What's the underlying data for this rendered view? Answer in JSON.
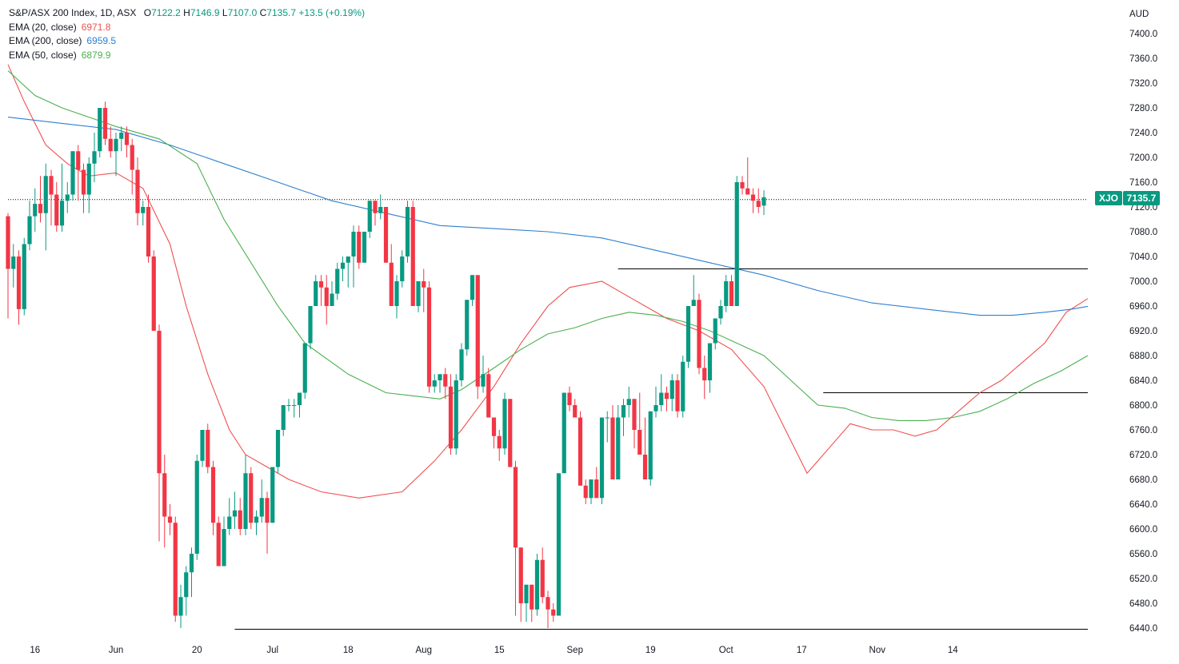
{
  "header": {
    "symbol_title": "S&P/ASX 200 Index, 1D, ASX",
    "ohlc": [
      {
        "k": "O",
        "v": "7122.2"
      },
      {
        "k": "H",
        "v": "7146.9"
      },
      {
        "k": "L",
        "v": "7107.0"
      },
      {
        "k": "C",
        "v": "7135.7"
      }
    ],
    "change": "+13.5 (+0.19%)",
    "indicators": [
      {
        "label": "EMA (20, close)",
        "value": "6971.8",
        "color": "#f0504f"
      },
      {
        "label": "EMA (200, close)",
        "value": "6959.5",
        "color": "#2f7fd0"
      },
      {
        "label": "EMA (50, close)",
        "value": "6879.9",
        "color": "#4caf50"
      }
    ]
  },
  "price_axis": {
    "currency": "AUD",
    "ticks": [
      "7400.0",
      "7360.0",
      "7320.0",
      "7280.0",
      "7240.0",
      "7200.0",
      "7160.0",
      "7120.0",
      "7080.0",
      "7040.0",
      "7000.0",
      "6960.0",
      "6920.0",
      "6880.0",
      "6840.0",
      "6800.0",
      "6760.0",
      "6720.0",
      "6680.0",
      "6640.0",
      "6600.0",
      "6560.0",
      "6520.0",
      "6480.0",
      "6440.0"
    ]
  },
  "last_price": {
    "ticker": "XJO",
    "value": "7135.7",
    "color": "#089981"
  },
  "time_axis": {
    "labels": [
      "16",
      "Jun",
      "20",
      "Jul",
      "18",
      "Aug",
      "15",
      "Sep",
      "19",
      "Oct",
      "17",
      "Nov",
      "14"
    ]
  },
  "colors": {
    "up": "#089981",
    "down": "#f23645",
    "ema20": "#f0504f",
    "ema200": "#2f7fd0",
    "ema50": "#4caf50"
  },
  "chart_data": {
    "type": "candlestick",
    "title": "S&P/ASX 200 Index, 1D, ASX",
    "ylabel": "AUD",
    "ylim": [
      6440,
      7440
    ],
    "x_label_index": [
      5,
      20,
      35,
      49,
      63,
      77,
      91,
      105,
      119,
      133,
      147,
      161,
      175
    ],
    "candles": [
      [
        7105,
        7110,
        6940,
        7020
      ],
      [
        7020,
        7060,
        6990,
        7040
      ],
      [
        7040,
        7050,
        6930,
        6955
      ],
      [
        6955,
        7070,
        6945,
        7060
      ],
      [
        7060,
        7130,
        7050,
        7105
      ],
      [
        7105,
        7150,
        7080,
        7125
      ],
      [
        7125,
        7170,
        7095,
        7110
      ],
      [
        7110,
        7190,
        7050,
        7170
      ],
      [
        7170,
        7180,
        7090,
        7140
      ],
      [
        7140,
        7160,
        7080,
        7090
      ],
      [
        7090,
        7190,
        7080,
        7130
      ],
      [
        7130,
        7160,
        7110,
        7140
      ],
      [
        7140,
        7210,
        7130,
        7210
      ],
      [
        7210,
        7220,
        7130,
        7180
      ],
      [
        7180,
        7190,
        7110,
        7140
      ],
      [
        7140,
        7200,
        7110,
        7190
      ],
      [
        7190,
        7240,
        7160,
        7210
      ],
      [
        7210,
        7280,
        7200,
        7280
      ],
      [
        7280,
        7290,
        7220,
        7230
      ],
      [
        7230,
        7250,
        7200,
        7210
      ],
      [
        7210,
        7240,
        7170,
        7230
      ],
      [
        7230,
        7250,
        7210,
        7240
      ],
      [
        7240,
        7250,
        7200,
        7220
      ],
      [
        7220,
        7230,
        7140,
        7180
      ],
      [
        7180,
        7200,
        7090,
        7110
      ],
      [
        7110,
        7130,
        7090,
        7120
      ],
      [
        7120,
        7140,
        7030,
        7040
      ],
      [
        7040,
        7050,
        6920,
        6920
      ],
      [
        6920,
        6930,
        6580,
        6690
      ],
      [
        6690,
        6720,
        6570,
        6620
      ],
      [
        6620,
        6640,
        6590,
        6610
      ],
      [
        6610,
        6620,
        6450,
        6460
      ],
      [
        6460,
        6510,
        6440,
        6490
      ],
      [
        6490,
        6540,
        6460,
        6530
      ],
      [
        6530,
        6570,
        6490,
        6560
      ],
      [
        6560,
        6720,
        6550,
        6710
      ],
      [
        6710,
        6760,
        6700,
        6760
      ],
      [
        6760,
        6770,
        6690,
        6700
      ],
      [
        6700,
        6710,
        6590,
        6610
      ],
      [
        6610,
        6620,
        6540,
        6540
      ],
      [
        6540,
        6620,
        6540,
        6600
      ],
      [
        6600,
        6650,
        6590,
        6620
      ],
      [
        6620,
        6660,
        6600,
        6630
      ],
      [
        6630,
        6650,
        6590,
        6600
      ],
      [
        6600,
        6720,
        6590,
        6690
      ],
      [
        6690,
        6700,
        6600,
        6610
      ],
      [
        6610,
        6630,
        6590,
        6620
      ],
      [
        6620,
        6680,
        6610,
        6650
      ],
      [
        6650,
        6660,
        6560,
        6610
      ],
      [
        6610,
        6700,
        6610,
        6700
      ],
      [
        6700,
        6760,
        6690,
        6760
      ],
      [
        6760,
        6800,
        6750,
        6800
      ],
      [
        6800,
        6810,
        6790,
        6800
      ],
      [
        6800,
        6810,
        6780,
        6800
      ],
      [
        6800,
        6820,
        6780,
        6820
      ],
      [
        6820,
        6900,
        6810,
        6900
      ],
      [
        6900,
        6960,
        6890,
        6960
      ],
      [
        6960,
        7010,
        6960,
        7000
      ],
      [
        7000,
        7010,
        6960,
        6990
      ],
      [
        6990,
        7010,
        6930,
        6960
      ],
      [
        6960,
        7000,
        6960,
        6980
      ],
      [
        6980,
        7030,
        6970,
        7020
      ],
      [
        7020,
        7040,
        7000,
        7030
      ],
      [
        7030,
        7040,
        6990,
        7040
      ],
      [
        7040,
        7090,
        6990,
        7080
      ],
      [
        7080,
        7090,
        7020,
        7030
      ],
      [
        7030,
        7080,
        7030,
        7080
      ],
      [
        7080,
        7130,
        7070,
        7130
      ],
      [
        7130,
        7130,
        7090,
        7110
      ],
      [
        7110,
        7140,
        7100,
        7120
      ],
      [
        7120,
        7120,
        7030,
        7030
      ],
      [
        7030,
        7060,
        6960,
        6960
      ],
      [
        6960,
        7010,
        6940,
        7000
      ],
      [
        7000,
        7050,
        6990,
        7040
      ],
      [
        7040,
        7130,
        7030,
        7120
      ],
      [
        7120,
        7130,
        6960,
        6960
      ],
      [
        6960,
        7000,
        6950,
        7000
      ],
      [
        7000,
        7020,
        6950,
        6990
      ],
      [
        6990,
        7000,
        6820,
        6830
      ],
      [
        6830,
        6850,
        6820,
        6840
      ],
      [
        6840,
        6850,
        6820,
        6850
      ],
      [
        6850,
        6860,
        6810,
        6830
      ],
      [
        6830,
        6850,
        6720,
        6730
      ],
      [
        6730,
        6850,
        6720,
        6840
      ],
      [
        6840,
        6900,
        6830,
        6890
      ],
      [
        6890,
        6970,
        6880,
        6970
      ],
      [
        6970,
        7010,
        6960,
        7010
      ],
      [
        7010,
        7010,
        6810,
        6830
      ],
      [
        6830,
        6880,
        6820,
        6850
      ],
      [
        6850,
        6860,
        6780,
        6780
      ],
      [
        6780,
        6780,
        6730,
        6750
      ],
      [
        6750,
        6760,
        6710,
        6730
      ],
      [
        6730,
        6820,
        6720,
        6810
      ],
      [
        6810,
        6810,
        6700,
        6700
      ],
      [
        6700,
        6710,
        6460,
        6570
      ],
      [
        6570,
        6570,
        6450,
        6480
      ],
      [
        6480,
        6510,
        6450,
        6510
      ],
      [
        6510,
        6510,
        6450,
        6470
      ],
      [
        6470,
        6560,
        6460,
        6550
      ],
      [
        6550,
        6570,
        6480,
        6490
      ],
      [
        6490,
        6500,
        6440,
        6470
      ],
      [
        6470,
        6480,
        6450,
        6460
      ],
      [
        6460,
        6690,
        6460,
        6690
      ],
      [
        6690,
        6820,
        6690,
        6820
      ],
      [
        6820,
        6830,
        6790,
        6800
      ],
      [
        6800,
        6810,
        6780,
        6780
      ],
      [
        6780,
        6790,
        6670,
        6670
      ],
      [
        6670,
        6680,
        6640,
        6650
      ],
      [
        6650,
        6680,
        6640,
        6680
      ],
      [
        6680,
        6700,
        6650,
        6650
      ],
      [
        6650,
        6780,
        6640,
        6780
      ],
      [
        6780,
        6790,
        6740,
        6780
      ],
      [
        6780,
        6800,
        6680,
        6680
      ],
      [
        6680,
        6800,
        6680,
        6780
      ],
      [
        6780,
        6810,
        6750,
        6800
      ],
      [
        6800,
        6830,
        6780,
        6810
      ],
      [
        6810,
        6810,
        6730,
        6760
      ],
      [
        6760,
        6820,
        6720,
        6720
      ],
      [
        6720,
        6780,
        6680,
        6680
      ],
      [
        6680,
        6790,
        6670,
        6790
      ],
      [
        6790,
        6830,
        6780,
        6800
      ],
      [
        6800,
        6850,
        6790,
        6820
      ],
      [
        6820,
        6830,
        6790,
        6810
      ],
      [
        6810,
        6850,
        6790,
        6840
      ],
      [
        6840,
        6850,
        6780,
        6790
      ],
      [
        6790,
        6880,
        6780,
        6870
      ],
      [
        6870,
        6960,
        6860,
        6960
      ],
      [
        6960,
        7010,
        6960,
        6970
      ],
      [
        6970,
        6980,
        6850,
        6860
      ],
      [
        6860,
        6880,
        6810,
        6840
      ],
      [
        6840,
        6900,
        6820,
        6900
      ],
      [
        6900,
        6940,
        6890,
        6940
      ],
      [
        6940,
        6970,
        6930,
        6960
      ],
      [
        6960,
        7010,
        6950,
        7000
      ],
      [
        7000,
        7010,
        6960,
        6960
      ],
      [
        6960,
        7170,
        6960,
        7160
      ],
      [
        7160,
        7170,
        7140,
        7150
      ],
      [
        7150,
        7200,
        7140,
        7140
      ],
      [
        7140,
        7150,
        7110,
        7130
      ],
      [
        7130,
        7150,
        7110,
        7120
      ],
      [
        7122.2,
        7146.9,
        7107.0,
        7135.7
      ]
    ],
    "ema": [
      {
        "name": "EMA (20, close)",
        "value": 6971.8,
        "color": "#f0504f",
        "points": [
          [
            0,
            7350
          ],
          [
            3,
            7290
          ],
          [
            7,
            7220
          ],
          [
            11,
            7190
          ],
          [
            15,
            7170
          ],
          [
            20,
            7175
          ],
          [
            25,
            7150
          ],
          [
            30,
            7060
          ],
          [
            33,
            6960
          ],
          [
            37,
            6850
          ],
          [
            41,
            6760
          ],
          [
            44,
            6720
          ],
          [
            48,
            6700
          ],
          [
            52,
            6680
          ],
          [
            58,
            6660
          ],
          [
            65,
            6650
          ],
          [
            73,
            6660
          ],
          [
            79,
            6710
          ],
          [
            84,
            6760
          ],
          [
            90,
            6830
          ],
          [
            95,
            6900
          ],
          [
            100,
            6960
          ],
          [
            104,
            6990
          ],
          [
            110,
            7000
          ],
          [
            116,
            6970
          ],
          [
            122,
            6940
          ],
          [
            128,
            6920
          ],
          [
            134,
            6890
          ],
          [
            140,
            6830
          ],
          [
            144,
            6760
          ],
          [
            148,
            6690
          ],
          [
            152,
            6730
          ],
          [
            156,
            6770
          ],
          [
            160,
            6760
          ],
          [
            164,
            6760
          ],
          [
            168,
            6750
          ],
          [
            172,
            6760
          ],
          [
            176,
            6790
          ],
          [
            180,
            6820
          ],
          [
            184,
            6840
          ],
          [
            188,
            6870
          ],
          [
            192,
            6900
          ],
          [
            196,
            6950
          ],
          [
            200,
            6972
          ]
        ]
      },
      {
        "name": "EMA (200, close)",
        "value": 6959.5,
        "color": "#2f7fd0",
        "points": [
          [
            0,
            7265
          ],
          [
            10,
            7255
          ],
          [
            20,
            7245
          ],
          [
            30,
            7220
          ],
          [
            40,
            7190
          ],
          [
            50,
            7160
          ],
          [
            60,
            7130
          ],
          [
            70,
            7110
          ],
          [
            80,
            7090
          ],
          [
            90,
            7085
          ],
          [
            100,
            7080
          ],
          [
            110,
            7070
          ],
          [
            120,
            7050
          ],
          [
            130,
            7030
          ],
          [
            140,
            7010
          ],
          [
            150,
            6985
          ],
          [
            160,
            6965
          ],
          [
            170,
            6955
          ],
          [
            180,
            6945
          ],
          [
            186,
            6945
          ],
          [
            192,
            6950
          ],
          [
            197,
            6955
          ],
          [
            200,
            6959.5
          ]
        ]
      },
      {
        "name": "EMA (50, close)",
        "value": 6879.9,
        "color": "#4caf50",
        "points": [
          [
            0,
            7340
          ],
          [
            5,
            7300
          ],
          [
            10,
            7280
          ],
          [
            20,
            7250
          ],
          [
            28,
            7230
          ],
          [
            35,
            7190
          ],
          [
            40,
            7100
          ],
          [
            45,
            7030
          ],
          [
            50,
            6960
          ],
          [
            55,
            6900
          ],
          [
            63,
            6850
          ],
          [
            70,
            6820
          ],
          [
            75,
            6815
          ],
          [
            80,
            6810
          ],
          [
            84,
            6825
          ],
          [
            90,
            6860
          ],
          [
            95,
            6890
          ],
          [
            100,
            6915
          ],
          [
            105,
            6925
          ],
          [
            110,
            6940
          ],
          [
            115,
            6950
          ],
          [
            120,
            6945
          ],
          [
            125,
            6935
          ],
          [
            130,
            6920
          ],
          [
            135,
            6900
          ],
          [
            140,
            6880
          ],
          [
            145,
            6840
          ],
          [
            150,
            6800
          ],
          [
            155,
            6795
          ],
          [
            160,
            6780
          ],
          [
            165,
            6775
          ],
          [
            170,
            6775
          ],
          [
            175,
            6780
          ],
          [
            180,
            6790
          ],
          [
            185,
            6810
          ],
          [
            190,
            6835
          ],
          [
            195,
            6855
          ],
          [
            200,
            6880
          ]
        ]
      }
    ],
    "levels": [
      {
        "price": 7020,
        "from_index": 113,
        "to_index": 200,
        "color": "#000000"
      },
      {
        "price": 6820,
        "from_index": 151,
        "to_index": 200,
        "color": "#000000"
      },
      {
        "price": 6438,
        "from_index": 42,
        "to_index": 200,
        "color": "#000000"
      },
      {
        "price": 7132,
        "from_index": 0,
        "to_index": 200,
        "color": "#000000"
      }
    ]
  }
}
